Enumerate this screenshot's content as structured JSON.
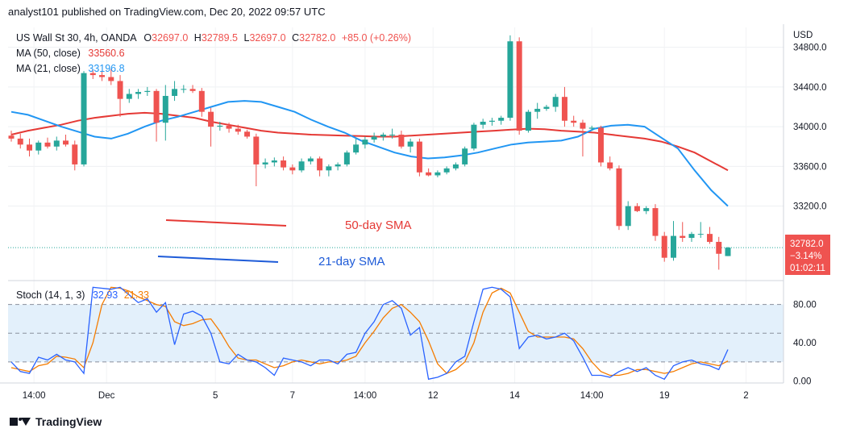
{
  "header": {
    "publisher": "analyst101 published on TradingView.com, Dec 20, 2022 09:57 UTC"
  },
  "footer": {
    "brand": "TradingView"
  },
  "colors": {
    "up": "#26a69a",
    "down": "#ef5350",
    "ma50": "#e53935",
    "ma21": "#2196f3",
    "stoch_k": "#2962ff",
    "stoch_d": "#f57c00",
    "band": "#e3f0fb",
    "sma_note_50": "#e53935",
    "sma_note_21": "#1e5bd8"
  },
  "chart_data": [
    {
      "type": "candlestick",
      "legend": {
        "symbol": "US Wall St 30, 4h, OANDA",
        "o_label": "O",
        "o": "32697.0",
        "h_label": "H",
        "h": "32789.5",
        "l_label": "L",
        "l": "32697.0",
        "c_label": "C",
        "c": "32782.0",
        "change": "+85.0 (+0.26%)",
        "ma50_label": "MA (50, close)",
        "ma50_value": "33560.6",
        "ma21_label": "MA (21, close)",
        "ma21_value": "33196.8"
      },
      "currency": "USD",
      "y_ticks": [
        "34800.0",
        "34400.0",
        "34000.0",
        "33600.0",
        "33200.0"
      ],
      "ylim": [
        32450,
        35000
      ],
      "x_ticks": [
        "14:00",
        "Dec",
        "5",
        "7",
        "14:00",
        "12",
        "14",
        "14:00",
        "19",
        "2"
      ],
      "price_tag": {
        "price": "32782.0",
        "change": "−3.14%",
        "countdown": "01:02:11"
      },
      "annotations": [
        "50-day SMA",
        "21-day SMA"
      ],
      "candles": [
        [
          33910,
          33960,
          33850,
          33880
        ],
        [
          33880,
          33930,
          33780,
          33820
        ],
        [
          33820,
          33880,
          33700,
          33760
        ],
        [
          33760,
          33860,
          33720,
          33840
        ],
        [
          33840,
          33890,
          33780,
          33800
        ],
        [
          33800,
          33900,
          33760,
          33860
        ],
        [
          33860,
          33920,
          33800,
          33820
        ],
        [
          33820,
          33860,
          33560,
          33620
        ],
        [
          33620,
          34560,
          33600,
          34540
        ],
        [
          34540,
          34580,
          34480,
          34520
        ],
        [
          34520,
          34560,
          34460,
          34500
        ],
        [
          34500,
          34580,
          34420,
          34460
        ],
        [
          34460,
          34520,
          34100,
          34280
        ],
        [
          34280,
          34380,
          34240,
          34330
        ],
        [
          34330,
          34380,
          34280,
          34350
        ],
        [
          34350,
          34400,
          34310,
          34360
        ],
        [
          34360,
          34380,
          33850,
          34040
        ],
        [
          34040,
          34420,
          33860,
          34310
        ],
        [
          34310,
          34460,
          34260,
          34380
        ],
        [
          34380,
          34420,
          34340,
          34380
        ],
        [
          34380,
          34420,
          34340,
          34360
        ],
        [
          34360,
          34390,
          34100,
          34150
        ],
        [
          34150,
          34190,
          33800,
          34000
        ],
        [
          34000,
          34050,
          33960,
          34010
        ],
        [
          34010,
          34040,
          33940,
          33980
        ],
        [
          33980,
          34020,
          33920,
          33950
        ],
        [
          33950,
          33970,
          33880,
          33900
        ],
        [
          33900,
          33930,
          33400,
          33620
        ],
        [
          33620,
          33680,
          33580,
          33640
        ],
        [
          33640,
          33690,
          33600,
          33660
        ],
        [
          33660,
          33700,
          33560,
          33590
        ],
        [
          33590,
          33620,
          33520,
          33560
        ],
        [
          33560,
          33680,
          33540,
          33650
        ],
        [
          33650,
          33700,
          33620,
          33680
        ],
        [
          33680,
          33700,
          33500,
          33560
        ],
        [
          33560,
          33620,
          33500,
          33600
        ],
        [
          33600,
          33640,
          33560,
          33620
        ],
        [
          33620,
          33760,
          33600,
          33740
        ],
        [
          33740,
          33880,
          33720,
          33820
        ],
        [
          33820,
          33900,
          33780,
          33870
        ],
        [
          33870,
          33940,
          33840,
          33900
        ],
        [
          33900,
          33940,
          33860,
          33920
        ],
        [
          33920,
          33980,
          33880,
          33920
        ],
        [
          33920,
          33960,
          33780,
          33800
        ],
        [
          33800,
          33880,
          33740,
          33850
        ],
        [
          33850,
          33880,
          33500,
          33540
        ],
        [
          33540,
          33580,
          33500,
          33510
        ],
        [
          33510,
          33560,
          33490,
          33540
        ],
        [
          33540,
          33600,
          33520,
          33580
        ],
        [
          33580,
          33640,
          33560,
          33620
        ],
        [
          33620,
          33800,
          33600,
          33780
        ],
        [
          33780,
          34040,
          33760,
          34020
        ],
        [
          34020,
          34080,
          33980,
          34050
        ],
        [
          34050,
          34090,
          34010,
          34060
        ],
        [
          34060,
          34110,
          34020,
          34090
        ],
        [
          34090,
          34920,
          34060,
          34860
        ],
        [
          34860,
          34900,
          33920,
          33960
        ],
        [
          33960,
          34170,
          33940,
          34150
        ],
        [
          34150,
          34240,
          34080,
          34180
        ],
        [
          34180,
          34220,
          34160,
          34200
        ],
        [
          34200,
          34330,
          34150,
          34300
        ],
        [
          34300,
          34400,
          34000,
          34060
        ],
        [
          34060,
          34110,
          34000,
          34040
        ],
        [
          34040,
          34070,
          33700,
          33980
        ],
        [
          33980,
          34010,
          33960,
          33990
        ],
        [
          33990,
          34010,
          33600,
          33640
        ],
        [
          33640,
          33700,
          33560,
          33580
        ],
        [
          33580,
          33610,
          32960,
          33000
        ],
        [
          33000,
          33250,
          32960,
          33200
        ],
        [
          33200,
          33230,
          33140,
          33150
        ],
        [
          33150,
          33200,
          33120,
          33180
        ],
        [
          33180,
          33220,
          32850,
          32900
        ],
        [
          32900,
          32940,
          32640,
          32680
        ],
        [
          32680,
          33050,
          32650,
          32900
        ],
        [
          32900,
          33040,
          32840,
          32880
        ],
        [
          32880,
          32940,
          32840,
          32920
        ],
        [
          32920,
          33040,
          32880,
          32920
        ],
        [
          32920,
          32990,
          32820,
          32840
        ],
        [
          32840,
          32890,
          32560,
          32720
        ],
        [
          32697,
          32789.5,
          32697,
          32782
        ]
      ],
      "ma21": [
        34150,
        34120,
        34060,
        34000,
        33950,
        33900,
        33880,
        33930,
        34000,
        34060,
        34100,
        34150,
        34200,
        34250,
        34260,
        34250,
        34200,
        34150,
        34070,
        34000,
        33940,
        33860,
        33800,
        33740,
        33700,
        33680,
        33690,
        33710,
        33740,
        33780,
        33820,
        33840,
        33850,
        33860,
        33900,
        33980,
        34010,
        34020,
        34000,
        33890,
        33780,
        33560,
        33360,
        33200
      ],
      "ma50": [
        33920,
        33960,
        33990,
        34020,
        34060,
        34090,
        34110,
        34130,
        34140,
        34130,
        34110,
        34090,
        34050,
        34020,
        33990,
        33960,
        33940,
        33930,
        33920,
        33915,
        33910,
        33905,
        33900,
        33900,
        33910,
        33920,
        33930,
        33940,
        33950,
        33960,
        33970,
        33980,
        33975,
        33960,
        33950,
        33940,
        33920,
        33900,
        33880,
        33850,
        33800,
        33740,
        33650,
        33560
      ]
    },
    {
      "type": "line",
      "title": "Stoch (14, 1, 3)",
      "legend_k": "32.93",
      "legend_d": "21.33",
      "y_ticks": [
        "80.00",
        "40.00",
        "0.00"
      ],
      "ylim": [
        -2,
        105
      ],
      "band": [
        20,
        80
      ],
      "series": [
        {
          "values": [
            20,
            10,
            8,
            25,
            22,
            28,
            22,
            20,
            8,
            98,
            97,
            96,
            98,
            90,
            82,
            86,
            72,
            82,
            38,
            70,
            73,
            68,
            50,
            20,
            18,
            28,
            22,
            20,
            14,
            6,
            24,
            22,
            20,
            16,
            22,
            22,
            18,
            28,
            30,
            50,
            62,
            80,
            84,
            76,
            48,
            56,
            2,
            4,
            8,
            20,
            26,
            62,
            96,
            98,
            96,
            88,
            34,
            46,
            48,
            44,
            46,
            50,
            42,
            25,
            6,
            6,
            4,
            10,
            14,
            10,
            14,
            6,
            2,
            16,
            20,
            22,
            18,
            16,
            12,
            33
          ]
        },
        {
          "values": [
            14,
            12,
            10,
            16,
            18,
            26,
            25,
            23,
            14,
            40,
            80,
            98,
            97,
            94,
            88,
            84,
            80,
            78,
            62,
            58,
            60,
            64,
            65,
            52,
            36,
            24,
            22,
            22,
            18,
            14,
            16,
            20,
            22,
            20,
            18,
            20,
            20,
            22,
            26,
            40,
            52,
            66,
            76,
            80,
            72,
            62,
            42,
            18,
            8,
            12,
            20,
            40,
            72,
            92,
            97,
            92,
            72,
            52,
            46,
            46,
            46,
            46,
            44,
            34,
            20,
            10,
            6,
            6,
            8,
            12,
            12,
            10,
            8,
            10,
            14,
            18,
            20,
            18,
            16,
            21
          ]
        }
      ]
    }
  ]
}
